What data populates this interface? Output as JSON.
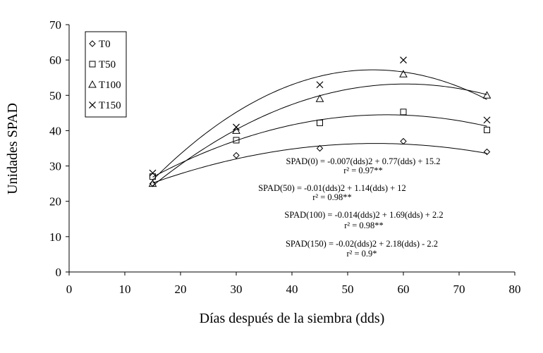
{
  "chart_data": {
    "type": "scatter",
    "xlabel": "Días después de la siembra (dds)",
    "ylabel": "Unidades SPAD",
    "xlim": [
      0,
      80
    ],
    "ylim": [
      0,
      70
    ],
    "xticks": [
      0,
      10,
      20,
      30,
      40,
      50,
      60,
      70,
      80
    ],
    "yticks": [
      0,
      10,
      20,
      30,
      40,
      50,
      60,
      70
    ],
    "grid": false,
    "legend_placement": "top-left",
    "series": [
      {
        "name": "T0",
        "marker": "diamond",
        "x": [
          15,
          30,
          45,
          60,
          75
        ],
        "y": [
          25,
          33,
          35,
          37,
          34
        ],
        "fit": {
          "a": -0.007,
          "b": 0.77,
          "c": 15.2
        },
        "equation": "SPAD(0) = -0.007(dds)2 + 0.77(dds) + 15.2",
        "r2": "r² = 0.97**"
      },
      {
        "name": "T50",
        "marker": "square",
        "x": [
          15,
          30,
          45,
          60,
          75
        ],
        "y": [
          27,
          37.3,
          42.2,
          45.3,
          40.2
        ],
        "fit": {
          "a": -0.01,
          "b": 1.14,
          "c": 12
        },
        "equation": "SPAD(50) = -0.01(dds)2 + 1.14(dds) + 12",
        "r2": "r² = 0.98**"
      },
      {
        "name": "T100",
        "marker": "triangle",
        "x": [
          15,
          30,
          45,
          60,
          75
        ],
        "y": [
          25,
          40,
          49,
          56,
          50
        ],
        "fit": {
          "a": -0.014,
          "b": 1.69,
          "c": 2.2
        },
        "equation": "SPAD(100) = -0.014(dds)2 + 1.69(dds) + 2.2",
        "r2": "r² = 0.98**"
      },
      {
        "name": "T150",
        "marker": "x",
        "x": [
          15,
          30,
          45,
          60,
          75
        ],
        "y": [
          28,
          41,
          53,
          60,
          43
        ],
        "fit": {
          "a": -0.02,
          "b": 2.18,
          "c": -2.2
        },
        "equation": "SPAD(150) = -0.02(dds)2 + 2.18(dds) - 2.2",
        "r2": "r² = 0.9*"
      }
    ]
  }
}
